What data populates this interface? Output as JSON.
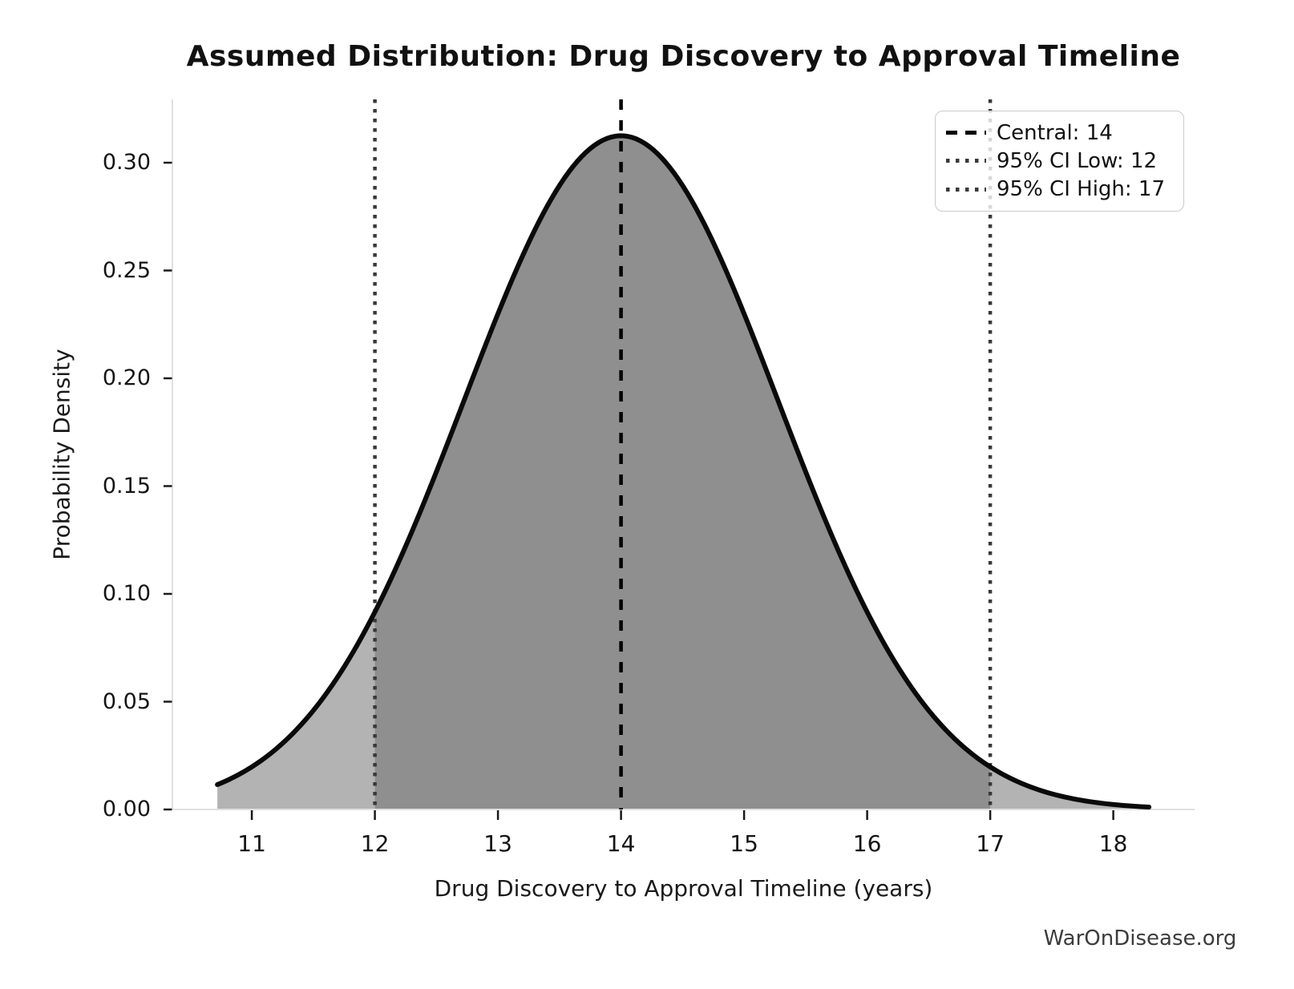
{
  "chart_data": {
    "type": "area",
    "title": "Assumed Distribution: Drug Discovery to Approval Timeline",
    "xlabel": "Drug Discovery to Approval Timeline (years)",
    "ylabel": "Probability Density",
    "watermark": "WarOnDisease.org",
    "central": 14,
    "ci_low": 12,
    "ci_high": 17,
    "distribution": {
      "family": "normal",
      "mean": 14,
      "sigma": 1.2766,
      "peak_density": 0.3125,
      "curve_x_start": 10.72,
      "curve_x_end": 18.29
    },
    "curve_samples": {
      "x": [
        10.7,
        11,
        11.5,
        12,
        12.5,
        13,
        13.5,
        14,
        14.5,
        15,
        15.5,
        16,
        16.5,
        17,
        17.5,
        18,
        18.28
      ],
      "density": [
        0.011,
        0.0197,
        0.0459,
        0.0916,
        0.1567,
        0.2299,
        0.2894,
        0.3125,
        0.2894,
        0.2299,
        0.1567,
        0.0916,
        0.0459,
        0.0197,
        0.0073,
        0.0023,
        0.0011
      ]
    },
    "x_ticks": [
      11,
      12,
      13,
      14,
      15,
      16,
      17,
      18
    ],
    "y_ticks": [
      "0.00",
      "0.05",
      "0.10",
      "0.15",
      "0.20",
      "0.25",
      "0.30"
    ],
    "y_tick_step": 0.05,
    "xlim": [
      10.34,
      18.66
    ],
    "ylim": [
      0,
      0.3295
    ],
    "grid": false,
    "legend_position": "upper right",
    "legend": {
      "items": [
        {
          "label": "Central: 14",
          "style": "dashed",
          "color": "#000000"
        },
        {
          "label": "95% CI Low: 12",
          "style": "dotted",
          "color": "#3a3a3a"
        },
        {
          "label": "95% CI High: 17",
          "style": "dotted",
          "color": "#3a3a3a"
        }
      ]
    },
    "colors": {
      "curve": "#0a0a0a",
      "fill_inner": "#8f8f8f",
      "fill_outer": "#b3b3b3",
      "vline_central": "#000000",
      "vline_ci": "#383838",
      "spine": "#e0e0e0",
      "tick_mark": "#1a1a1a",
      "tick_text": "#141414",
      "watermark_text": "#3c3c3c"
    }
  }
}
